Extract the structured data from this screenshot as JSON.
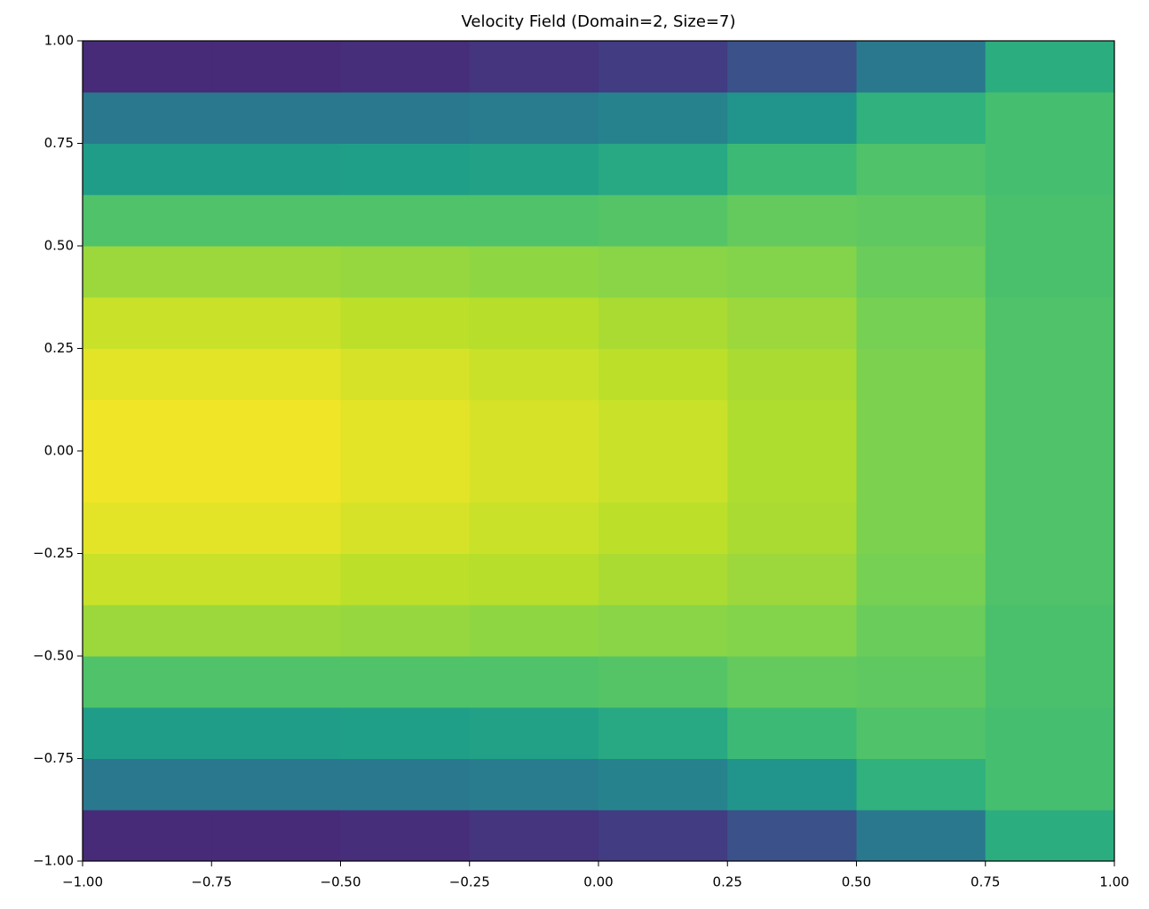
{
  "chart_data": {
    "type": "heatmap",
    "title": "Velocity Field (Domain=2, Size=7)",
    "xlim": [
      -1,
      1
    ],
    "ylim": [
      -1,
      1
    ],
    "xticks": [
      {
        "value": -1,
        "label": "−1.00"
      },
      {
        "value": -0.75,
        "label": "−0.75"
      },
      {
        "value": -0.5,
        "label": "−0.50"
      },
      {
        "value": -0.25,
        "label": "−0.25"
      },
      {
        "value": 0,
        "label": "0.00"
      },
      {
        "value": 0.25,
        "label": "0.25"
      },
      {
        "value": 0.5,
        "label": "0.50"
      },
      {
        "value": 0.75,
        "label": "0.75"
      },
      {
        "value": 1,
        "label": "1.00"
      }
    ],
    "yticks": [
      {
        "value": -1,
        "label": "−1.00"
      },
      {
        "value": -0.75,
        "label": "−0.75"
      },
      {
        "value": -0.5,
        "label": "−0.50"
      },
      {
        "value": -0.25,
        "label": "−0.25"
      },
      {
        "value": 0,
        "label": "0.00"
      },
      {
        "value": 0.25,
        "label": "0.25"
      },
      {
        "value": 0.5,
        "label": "0.50"
      },
      {
        "value": 0.75,
        "label": "0.75"
      },
      {
        "value": 1,
        "label": "1.00"
      }
    ],
    "x": [
      -0.875,
      -0.625,
      -0.375,
      -0.125,
      0.125,
      0.375,
      0.625,
      0.875
    ],
    "y": [
      -0.9375,
      -0.8125,
      -0.6875,
      -0.5625,
      -0.4375,
      -0.3125,
      -0.1875,
      -0.0625,
      0.0625,
      0.1875,
      0.3125,
      0.4375,
      0.5625,
      0.6875,
      0.8125,
      0.9375
    ],
    "z": [
      [
        0.12,
        0.12,
        0.13,
        0.15,
        0.18,
        0.25,
        0.4,
        0.62
      ],
      [
        0.4,
        0.4,
        0.4,
        0.42,
        0.45,
        0.52,
        0.64,
        0.7
      ],
      [
        0.55,
        0.55,
        0.56,
        0.57,
        0.6,
        0.68,
        0.72,
        0.7
      ],
      [
        0.72,
        0.72,
        0.72,
        0.72,
        0.73,
        0.76,
        0.75,
        0.71
      ],
      [
        0.85,
        0.85,
        0.84,
        0.83,
        0.82,
        0.81,
        0.77,
        0.71
      ],
      [
        0.92,
        0.92,
        0.9,
        0.89,
        0.87,
        0.85,
        0.79,
        0.72
      ],
      [
        0.96,
        0.96,
        0.94,
        0.92,
        0.9,
        0.87,
        0.8,
        0.72
      ],
      [
        0.98,
        0.98,
        0.96,
        0.94,
        0.92,
        0.88,
        0.8,
        0.72
      ],
      [
        0.98,
        0.98,
        0.96,
        0.94,
        0.92,
        0.88,
        0.8,
        0.72
      ],
      [
        0.96,
        0.96,
        0.94,
        0.92,
        0.9,
        0.87,
        0.8,
        0.72
      ],
      [
        0.92,
        0.92,
        0.9,
        0.89,
        0.87,
        0.85,
        0.79,
        0.72
      ],
      [
        0.85,
        0.85,
        0.84,
        0.83,
        0.82,
        0.81,
        0.77,
        0.71
      ],
      [
        0.72,
        0.72,
        0.72,
        0.72,
        0.73,
        0.76,
        0.75,
        0.71
      ],
      [
        0.55,
        0.55,
        0.56,
        0.57,
        0.6,
        0.68,
        0.72,
        0.7
      ],
      [
        0.4,
        0.4,
        0.4,
        0.42,
        0.45,
        0.52,
        0.64,
        0.7
      ],
      [
        0.12,
        0.12,
        0.13,
        0.15,
        0.18,
        0.25,
        0.4,
        0.62
      ]
    ],
    "colorscale": [
      "#440154",
      "#482878",
      "#3e4989",
      "#31688e",
      "#26828e",
      "#1f9e89",
      "#35b779",
      "#6ece58",
      "#b5de2b",
      "#fde725"
    ]
  }
}
